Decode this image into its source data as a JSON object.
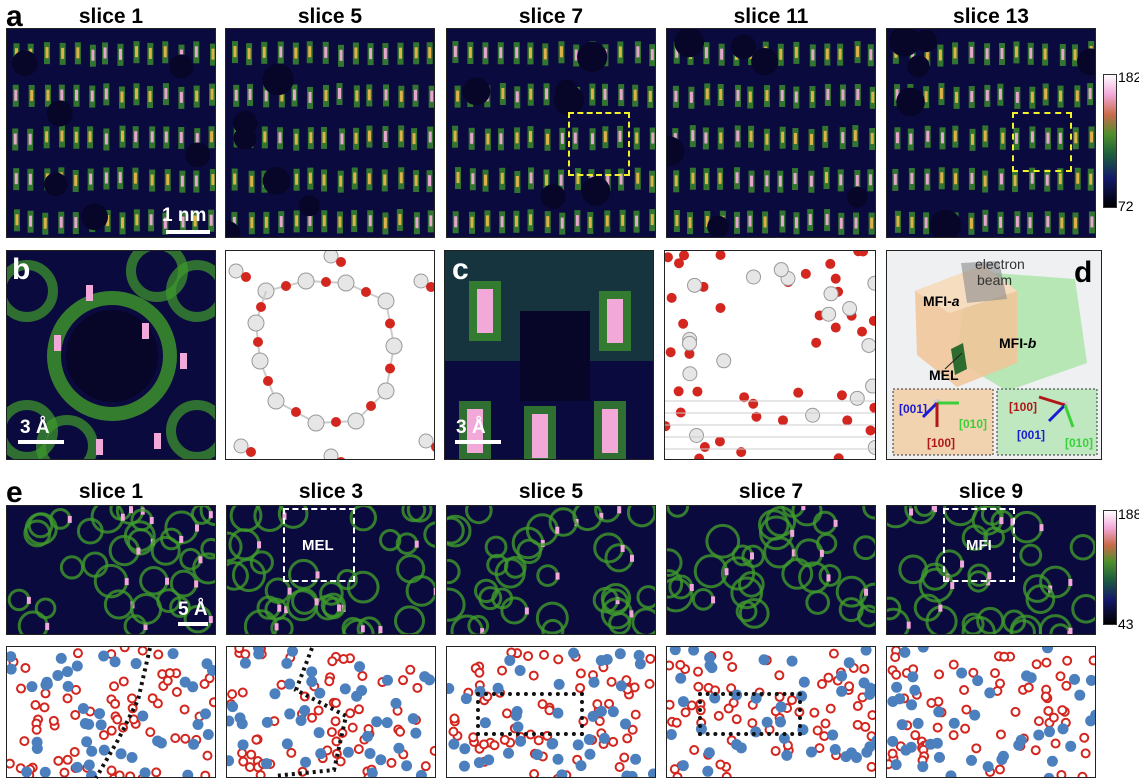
{
  "panel_letters": {
    "a": "a",
    "b": "b",
    "c": "c",
    "d": "d",
    "e": "e"
  },
  "row_a_titles": [
    "slice 1",
    "slice 5",
    "slice 7",
    "slice 11",
    "slice 13"
  ],
  "row_e_titles": [
    "slice 1",
    "slice 3",
    "slice 5",
    "slice 7",
    "slice 9"
  ],
  "scalebars": {
    "a": "1 nm",
    "b": "3 Å",
    "c": "3 Å",
    "e": "5 Å"
  },
  "colorbar_a": {
    "max": "182",
    "min": "72"
  },
  "colorbar_e": {
    "max": "188",
    "min": "43"
  },
  "box_labels": {
    "mel": "MEL",
    "mfi": "MFI"
  },
  "panel_d": {
    "electron_beam_line1": "electron",
    "electron_beam_line2": "beam",
    "mfi_a": "MFI-",
    "mfi_a_italic": "a",
    "mfi_b": "MFI-",
    "mfi_b_italic": "b",
    "mel": "MEL",
    "left_axes": {
      "a001": "[001]",
      "a010": "[010]",
      "a100": "[100]"
    },
    "right_axes": {
      "a100": "[100]",
      "a001": "[001]",
      "a010": "[010]"
    }
  },
  "colors": {
    "heat_bg": "#0b0a3e",
    "green": "#3f9a2c",
    "pink": "#f2a8d8",
    "oxygen": "#d3261f",
    "silicon_grey": "#d9d9d9",
    "silicon_blue": "#4b7fbd"
  }
}
